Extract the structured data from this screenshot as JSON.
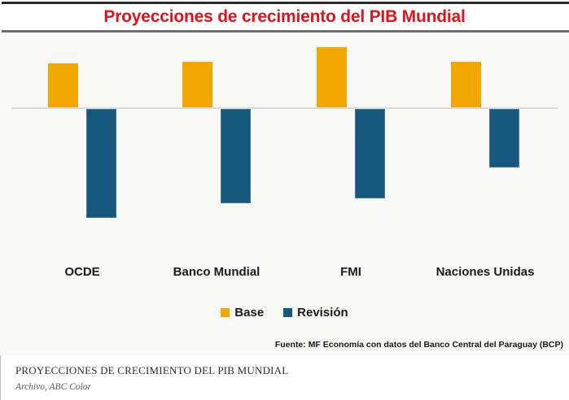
{
  "page": {
    "title": "Proyecciones de crecimiento del PIB Mundial",
    "source": "Fuente: MF Economía con datos del Banco Central del Paraguay (BCP)",
    "caption_title": "PROYECCIONES DE CRECIMIENTO DEL PIB MUNDIAL",
    "caption_credit": "Archivo, ABC Color"
  },
  "colors": {
    "title_red": "#e01319",
    "base_yellow": "#f0a800",
    "revision_blue": "#16577e",
    "chart_bg": "#f8f8f6",
    "baseline_gray": "#dbdbd9",
    "top_rule": "#2b2b2b",
    "divider": "#6f6f6f"
  },
  "chart_data": {
    "type": "bar",
    "title": "Proyecciones de crecimiento del PIB Mundial",
    "categories": [
      "OCDE",
      "Banco Mundial",
      "FMI",
      "Naciones Unidas"
    ],
    "series": [
      {
        "name": "Base",
        "color": "#f0a800",
        "values": [
          2.4,
          2.5,
          3.3,
          2.5
        ]
      },
      {
        "name": "Revisión",
        "color": "#16577e",
        "values": [
          -6.0,
          -5.2,
          -4.9,
          -3.2
        ]
      }
    ],
    "xlabel": "",
    "ylabel": "",
    "ylim": [
      -7,
      4
    ],
    "value_unit": "%",
    "grid": false,
    "axis_labels_visible": false,
    "legend_position": "bottom"
  }
}
